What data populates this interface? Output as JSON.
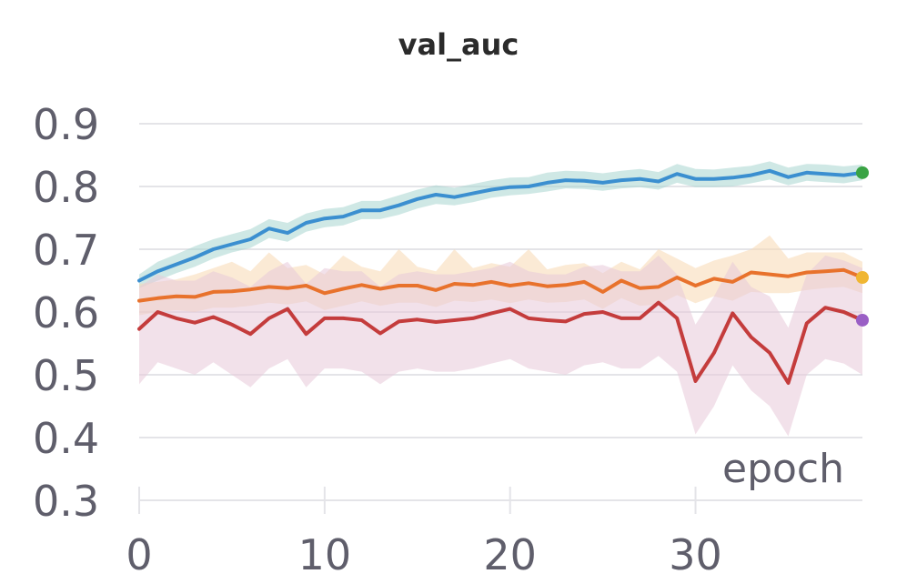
{
  "chart_data": {
    "type": "line",
    "title": "val_auc",
    "xlabel": "epoch",
    "ylabel": "",
    "xlim": [
      0,
      39
    ],
    "ylim": [
      0.3,
      0.9
    ],
    "x_ticks": [
      0,
      10,
      20,
      30
    ],
    "y_ticks": [
      0.3,
      0.4,
      0.5,
      0.6,
      0.7,
      0.8,
      0.9
    ],
    "grid": true,
    "legend": "none",
    "series": [
      {
        "color": "#3b8fd0",
        "band_color": "#a8d5cf",
        "end_marker_color": "#3aa345",
        "values": [
          0.65,
          0.665,
          0.676,
          0.687,
          0.7,
          0.708,
          0.716,
          0.733,
          0.726,
          0.742,
          0.749,
          0.752,
          0.762,
          0.762,
          0.77,
          0.78,
          0.787,
          0.783,
          0.789,
          0.795,
          0.799,
          0.8,
          0.806,
          0.81,
          0.809,
          0.806,
          0.81,
          0.812,
          0.808,
          0.82,
          0.812,
          0.812,
          0.814,
          0.818,
          0.825,
          0.815,
          0.822,
          0.82,
          0.818,
          0.822
        ],
        "lower": [
          0.638,
          0.65,
          0.662,
          0.672,
          0.685,
          0.695,
          0.702,
          0.718,
          0.712,
          0.728,
          0.735,
          0.738,
          0.748,
          0.748,
          0.755,
          0.765,
          0.772,
          0.77,
          0.775,
          0.782,
          0.786,
          0.788,
          0.792,
          0.797,
          0.796,
          0.793,
          0.797,
          0.799,
          0.795,
          0.806,
          0.799,
          0.799,
          0.8,
          0.805,
          0.811,
          0.802,
          0.809,
          0.807,
          0.805,
          0.81
        ],
        "upper": [
          0.66,
          0.68,
          0.692,
          0.705,
          0.716,
          0.724,
          0.732,
          0.748,
          0.742,
          0.757,
          0.764,
          0.767,
          0.777,
          0.777,
          0.786,
          0.795,
          0.802,
          0.798,
          0.804,
          0.81,
          0.814,
          0.815,
          0.822,
          0.825,
          0.824,
          0.821,
          0.825,
          0.828,
          0.823,
          0.836,
          0.828,
          0.827,
          0.83,
          0.833,
          0.84,
          0.83,
          0.836,
          0.835,
          0.832,
          0.835
        ]
      },
      {
        "color": "#e8722c",
        "band_color": "#f8d8b2",
        "end_marker_color": "#f0b632",
        "values": [
          0.618,
          0.622,
          0.625,
          0.624,
          0.632,
          0.633,
          0.636,
          0.64,
          0.638,
          0.642,
          0.63,
          0.637,
          0.643,
          0.637,
          0.642,
          0.642,
          0.635,
          0.645,
          0.643,
          0.648,
          0.642,
          0.646,
          0.641,
          0.643,
          0.648,
          0.632,
          0.65,
          0.638,
          0.64,
          0.655,
          0.642,
          0.653,
          0.648,
          0.663,
          0.66,
          0.657,
          0.663,
          0.665,
          0.667,
          0.655
        ],
        "lower": [
          0.595,
          0.6,
          0.603,
          0.6,
          0.607,
          0.607,
          0.61,
          0.615,
          0.612,
          0.617,
          0.603,
          0.61,
          0.617,
          0.61,
          0.615,
          0.615,
          0.608,
          0.618,
          0.616,
          0.62,
          0.614,
          0.62,
          0.615,
          0.616,
          0.62,
          0.605,
          0.622,
          0.61,
          0.612,
          0.627,
          0.614,
          0.625,
          0.618,
          0.632,
          0.63,
          0.63,
          0.635,
          0.638,
          0.64,
          0.63
        ],
        "upper": [
          0.645,
          0.648,
          0.652,
          0.66,
          0.67,
          0.68,
          0.665,
          0.695,
          0.67,
          0.675,
          0.66,
          0.69,
          0.672,
          0.665,
          0.7,
          0.672,
          0.665,
          0.7,
          0.67,
          0.678,
          0.672,
          0.7,
          0.668,
          0.675,
          0.678,
          0.662,
          0.68,
          0.668,
          0.7,
          0.685,
          0.67,
          0.682,
          0.69,
          0.7,
          0.722,
          0.685,
          0.695,
          0.695,
          0.695,
          0.68
        ]
      },
      {
        "color": "#c43c3c",
        "band_color": "#e8c8d8",
        "end_marker_color": "#9a5fc5",
        "values": [
          0.573,
          0.6,
          0.59,
          0.583,
          0.592,
          0.58,
          0.565,
          0.59,
          0.605,
          0.565,
          0.59,
          0.59,
          0.587,
          0.566,
          0.585,
          0.588,
          0.584,
          0.587,
          0.59,
          0.598,
          0.605,
          0.59,
          0.587,
          0.585,
          0.597,
          0.6,
          0.59,
          0.59,
          0.615,
          0.59,
          0.49,
          0.535,
          0.598,
          0.56,
          0.535,
          0.487,
          0.582,
          0.607,
          0.6,
          0.587
        ],
        "lower": [
          0.485,
          0.52,
          0.51,
          0.5,
          0.52,
          0.5,
          0.48,
          0.51,
          0.525,
          0.48,
          0.51,
          0.51,
          0.505,
          0.485,
          0.505,
          0.51,
          0.505,
          0.505,
          0.51,
          0.518,
          0.525,
          0.51,
          0.505,
          0.5,
          0.515,
          0.52,
          0.51,
          0.51,
          0.53,
          0.505,
          0.405,
          0.45,
          0.515,
          0.475,
          0.45,
          0.402,
          0.5,
          0.525,
          0.518,
          0.5
        ],
        "upper": [
          0.64,
          0.66,
          0.65,
          0.65,
          0.665,
          0.655,
          0.64,
          0.665,
          0.68,
          0.645,
          0.67,
          0.665,
          0.665,
          0.64,
          0.66,
          0.665,
          0.66,
          0.66,
          0.665,
          0.67,
          0.68,
          0.665,
          0.66,
          0.66,
          0.672,
          0.675,
          0.665,
          0.665,
          0.69,
          0.66,
          0.58,
          0.625,
          0.68,
          0.64,
          0.625,
          0.575,
          0.66,
          0.69,
          0.682,
          0.67
        ]
      }
    ]
  }
}
